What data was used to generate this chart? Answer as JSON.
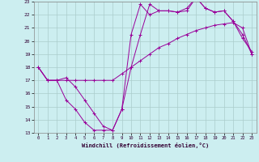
{
  "title": "",
  "xlabel": "Windchill (Refroidissement éolien,°C)",
  "ylabel": "",
  "bg_color": "#cceef0",
  "line_color": "#990099",
  "grid_color": "#aacccc",
  "xlim": [
    -0.5,
    23.5
  ],
  "ylim": [
    13,
    23
  ],
  "xticks": [
    0,
    1,
    2,
    3,
    4,
    5,
    6,
    7,
    8,
    9,
    10,
    11,
    12,
    13,
    14,
    15,
    16,
    17,
    18,
    19,
    20,
    21,
    22,
    23
  ],
  "yticks": [
    13,
    14,
    15,
    16,
    17,
    18,
    19,
    20,
    21,
    22,
    23
  ],
  "line1_x": [
    0,
    1,
    2,
    3,
    4,
    5,
    6,
    7,
    8,
    9,
    10,
    11,
    12,
    13,
    14,
    15,
    16,
    17,
    18,
    19,
    20,
    21,
    22,
    23
  ],
  "line1_y": [
    18.0,
    17.0,
    17.0,
    17.0,
    17.0,
    17.0,
    17.0,
    17.0,
    17.0,
    17.5,
    18.0,
    18.5,
    19.0,
    19.5,
    19.8,
    20.2,
    20.5,
    20.8,
    21.0,
    21.2,
    21.3,
    21.4,
    21.0,
    19.0
  ],
  "line2_x": [
    0,
    1,
    2,
    3,
    4,
    5,
    6,
    7,
    8,
    9,
    10,
    11,
    12,
    13,
    14,
    15,
    16,
    17,
    18,
    19,
    20,
    21,
    22,
    23
  ],
  "line2_y": [
    18.0,
    17.0,
    17.0,
    17.2,
    16.5,
    15.5,
    14.5,
    13.5,
    13.2,
    14.8,
    20.5,
    22.8,
    22.0,
    22.3,
    22.3,
    22.2,
    22.3,
    23.3,
    22.5,
    22.2,
    22.3,
    21.5,
    20.5,
    19.0
  ],
  "line3_x": [
    0,
    1,
    2,
    3,
    4,
    5,
    6,
    7,
    8,
    9,
    10,
    11,
    12,
    13,
    14,
    15,
    16,
    17,
    18,
    19,
    20,
    21,
    22,
    23
  ],
  "line3_y": [
    18.0,
    17.0,
    17.0,
    15.5,
    14.8,
    13.8,
    13.2,
    13.2,
    13.2,
    14.8,
    18.0,
    20.5,
    22.8,
    22.3,
    22.3,
    22.2,
    22.5,
    23.3,
    22.5,
    22.2,
    22.3,
    21.5,
    20.2,
    19.2
  ]
}
